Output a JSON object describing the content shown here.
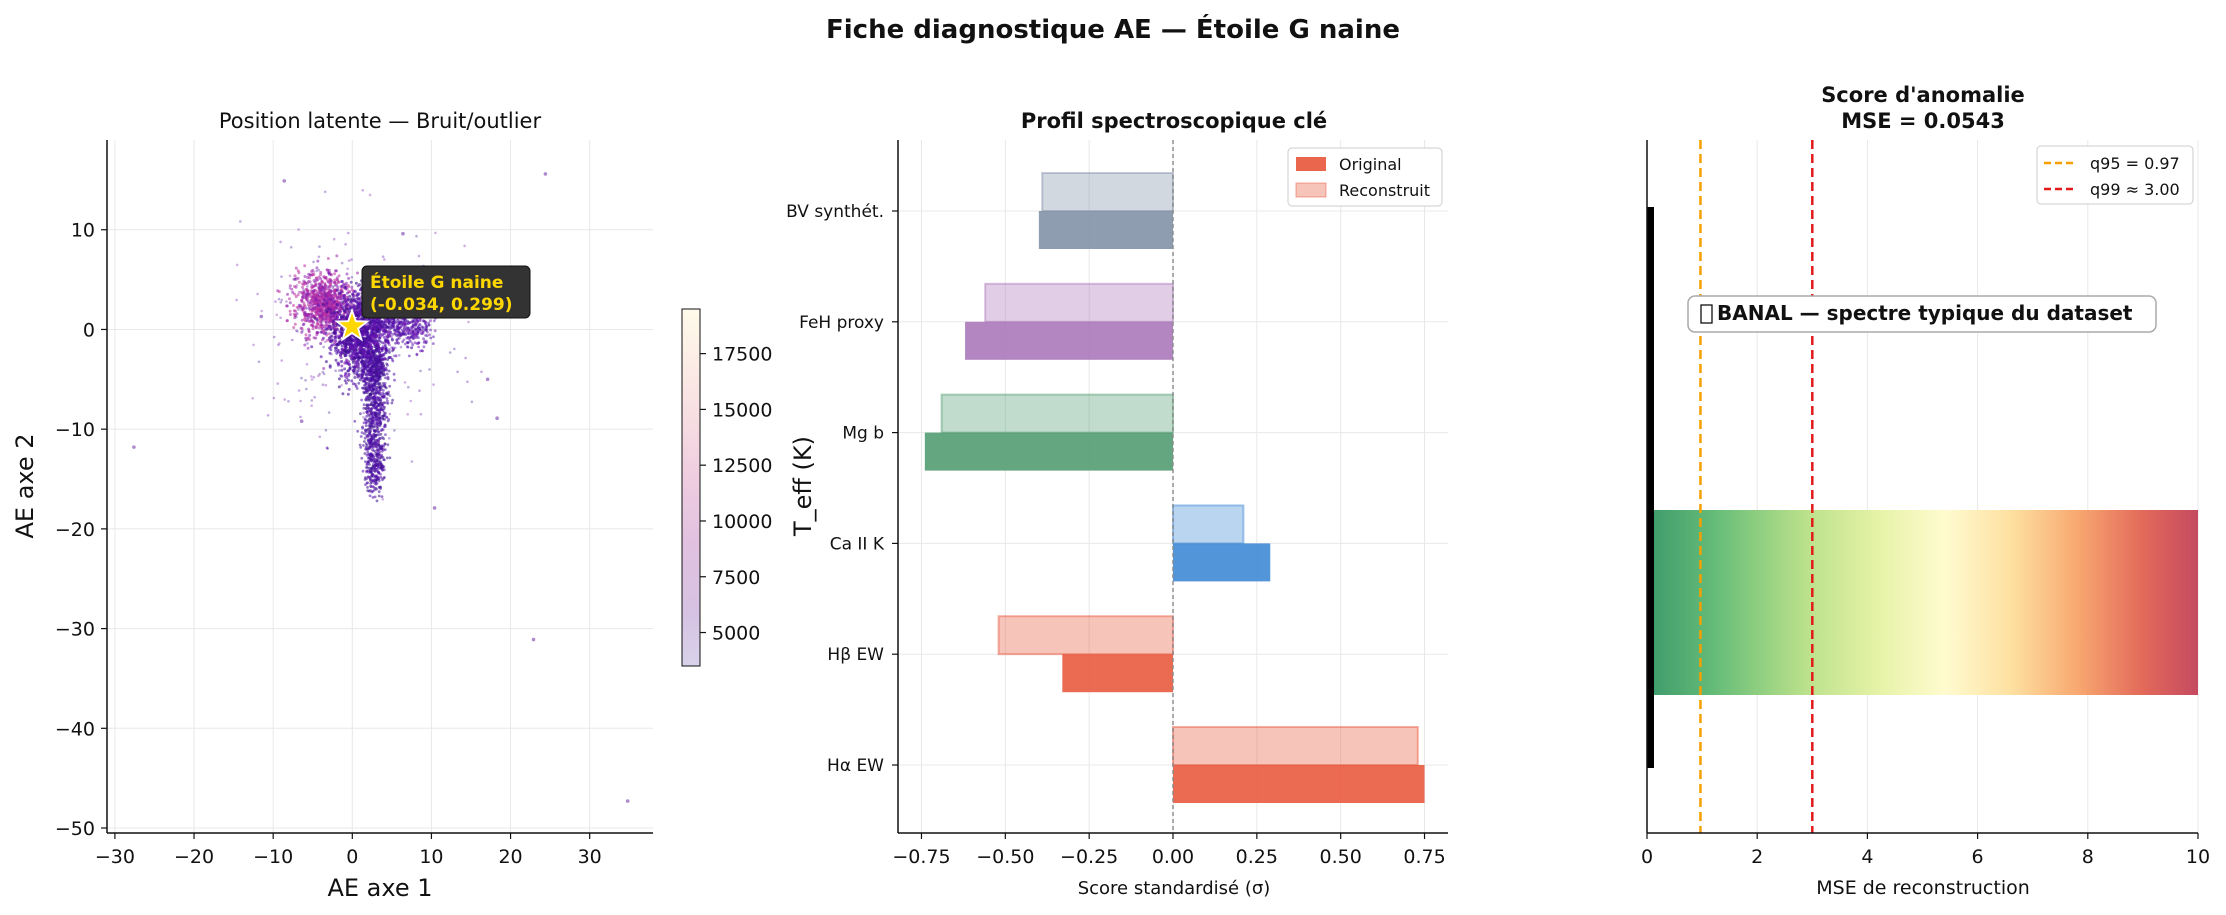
{
  "figure": {
    "suptitle": "Fiche diagnostique AE — Étoile G naine"
  },
  "chart_data": [
    {
      "type": "scatter",
      "title": "Position latente — Bruit/outlier",
      "xlabel": "AE axe 1",
      "ylabel": "AE axe 2",
      "xlim": [
        -31,
        38
      ],
      "ylim": [
        -50.5,
        19
      ],
      "xticks": [
        -30,
        -20,
        -10,
        0,
        10,
        20,
        30
      ],
      "yticks": [
        -50,
        -40,
        -30,
        -20,
        -10,
        0,
        10
      ],
      "grid": true,
      "colorbar": {
        "label": "T_eff (K)",
        "range": [
          3500,
          19500
        ],
        "ticks": [
          5000,
          7500,
          10000,
          12500,
          15000,
          17500
        ],
        "colormap": "RdPu_r-like (indigo → magenta → cream)"
      },
      "highlight": {
        "name": "Étoile G naine",
        "coords_label": "(-0.034, 0.299)",
        "x": -0.034,
        "y": 0.299,
        "marker": "star",
        "color": "#ffd700"
      },
      "outliers": [
        {
          "x": -8.6,
          "y": 14.9
        },
        {
          "x": 24.4,
          "y": 15.6
        },
        {
          "x": -27.6,
          "y": -11.8
        },
        {
          "x": 18.3,
          "y": -8.9
        },
        {
          "x": 22.9,
          "y": -31.1
        },
        {
          "x": 34.8,
          "y": -47.3
        },
        {
          "x": 10.4,
          "y": -17.9
        },
        {
          "x": 6.4,
          "y": 9.6
        },
        {
          "x": -6.4,
          "y": -9.2
        },
        {
          "x": 17.1,
          "y": -5.0
        },
        {
          "x": -11.5,
          "y": 1.3
        }
      ],
      "cloud_description": "dense cloud of ~5000 points around origin, extending as a vertical tail down to y≈-17 near x≈3"
    },
    {
      "type": "bar",
      "orientation": "horizontal",
      "title": "Profil spectroscopique clé",
      "xlabel": "Score standardisé (σ)",
      "xlim": [
        -0.82,
        0.82
      ],
      "xticks": [
        -0.75,
        -0.5,
        -0.25,
        0.0,
        0.25,
        0.5,
        0.75
      ],
      "xtick_labels": [
        "−0.75",
        "−0.50",
        "−0.25",
        "0.00",
        "0.25",
        "0.50",
        "0.75"
      ],
      "legend": {
        "placement": "top-right",
        "entries": [
          "Original",
          "Reconstruit"
        ]
      },
      "categories": [
        "Hα EW",
        "Hβ EW",
        "Ca II K",
        "Mg b",
        "FeH proxy",
        "BV synthét."
      ],
      "series": [
        {
          "name": "Original",
          "values": [
            0.75,
            -0.33,
            0.29,
            -0.74,
            -0.62,
            -0.4
          ]
        },
        {
          "name": "Reconstruit",
          "values": [
            0.73,
            -0.52,
            0.21,
            -0.69,
            -0.56,
            -0.39
          ]
        }
      ],
      "colors": [
        "#e8553a",
        "#e8553a",
        "#3a86d4",
        "#4e9a6d",
        "#a874b8",
        "#7f8fa6"
      ]
    },
    {
      "type": "bar",
      "title_line1": "Score d'anomalie",
      "title_line2": "MSE = 0.0543",
      "xlabel": "MSE de reconstruction",
      "xlim": [
        0,
        10
      ],
      "xticks": [
        0,
        2,
        4,
        6,
        8,
        10
      ],
      "value": 0.0543,
      "thresholds": [
        {
          "label": "q95 = 0.97",
          "value": 0.97,
          "color": "#f5a000"
        },
        {
          "label": "q99 ≈ 3.00",
          "value": 3.0,
          "color": "#e31a1c"
        }
      ],
      "verdict": "BANAL — spectre typique du dataset",
      "verdict_icon": "missing-glyph-icon",
      "legend_placement": "top-right",
      "gradient_colormap": "RdYlGn_r"
    }
  ]
}
